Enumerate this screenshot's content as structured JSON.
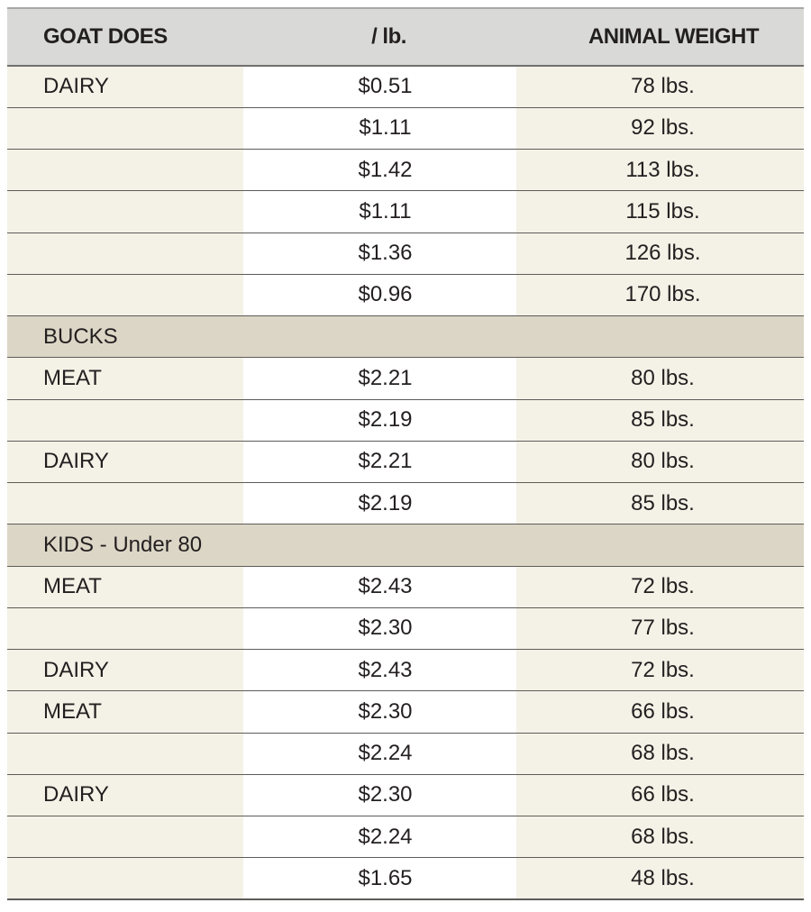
{
  "header": {
    "type": "GOAT DOES",
    "price": "/ lb.",
    "weight": "ANIMAL WEIGHT"
  },
  "rows": [
    {
      "type": "DAIRY",
      "price": "$0.51",
      "weight": "78 lbs."
    },
    {
      "type": "",
      "price": "$1.11",
      "weight": "92 lbs."
    },
    {
      "type": "",
      "price": "$1.42",
      "weight": "113 lbs."
    },
    {
      "type": "",
      "price": "$1.11",
      "weight": "115 lbs."
    },
    {
      "type": "",
      "price": "$1.36",
      "weight": "126 lbs."
    },
    {
      "type": "",
      "price": "$0.96",
      "weight": "170 lbs."
    },
    {
      "section": "BUCKS"
    },
    {
      "type": "MEAT",
      "price": "$2.21",
      "weight": "80 lbs."
    },
    {
      "type": "",
      "price": "$2.19",
      "weight": "85 lbs."
    },
    {
      "type": "DAIRY",
      "price": "$2.21",
      "weight": "80 lbs."
    },
    {
      "type": "",
      "price": "$2.19",
      "weight": "85 lbs."
    },
    {
      "section": "KIDS - Under 80"
    },
    {
      "type": "MEAT",
      "price": "$2.43",
      "weight": "72 lbs."
    },
    {
      "type": "",
      "price": "$2.30",
      "weight": "77 lbs."
    },
    {
      "type": "DAIRY",
      "price": "$2.43",
      "weight": "72 lbs."
    },
    {
      "type": "MEAT",
      "price": "$2.30",
      "weight": "66 lbs."
    },
    {
      "type": "",
      "price": "$2.24",
      "weight": "68 lbs."
    },
    {
      "type": "DAIRY",
      "price": "$2.30",
      "weight": "66 lbs."
    },
    {
      "type": "",
      "price": "$2.24",
      "weight": "68 lbs."
    },
    {
      "type": "",
      "price": "$1.65",
      "weight": "48 lbs."
    }
  ]
}
